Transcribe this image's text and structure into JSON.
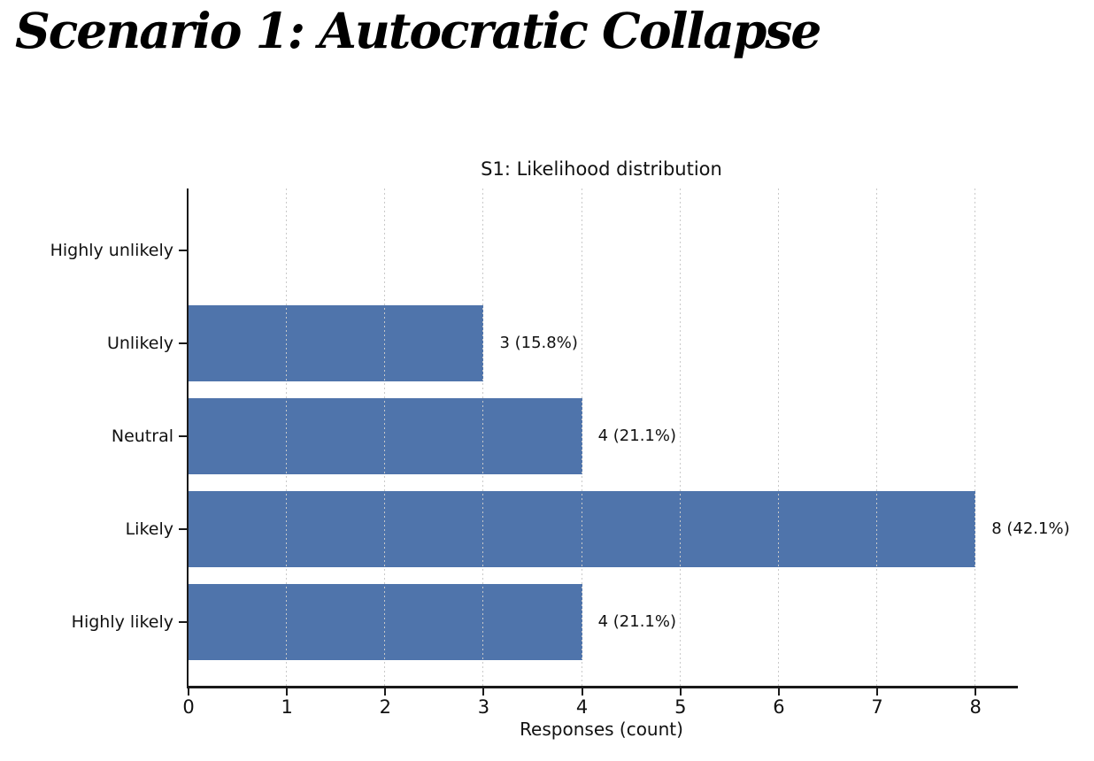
{
  "page": {
    "heading": "Scenario 1: Autocratic Collapse"
  },
  "chart_data": {
    "type": "bar",
    "orientation": "horizontal",
    "title": "S1: Likelihood distribution",
    "categories": [
      "Highly unlikely",
      "Unlikely",
      "Neutral",
      "Likely",
      "Highly likely"
    ],
    "values": [
      0,
      3,
      4,
      8,
      4
    ],
    "bar_labels": [
      "",
      "3 (15.8%)",
      "4 (21.1%)",
      "8 (42.1%)",
      "4 (21.1%)"
    ],
    "xlabel": "Responses (count)",
    "xticks": [
      "0",
      "1",
      "2",
      "3",
      "4",
      "5",
      "6",
      "7",
      "8"
    ],
    "xlim": [
      0,
      8.43
    ],
    "ylim_note": "categories listed top to bottom",
    "grid": "vertical-dotted",
    "legend": "none",
    "colors": {
      "bar": "#4f74ab",
      "grid": "#c9c9c9",
      "axis": "#1a1a1a",
      "text": "#111111",
      "background": "#ffffff"
    }
  }
}
